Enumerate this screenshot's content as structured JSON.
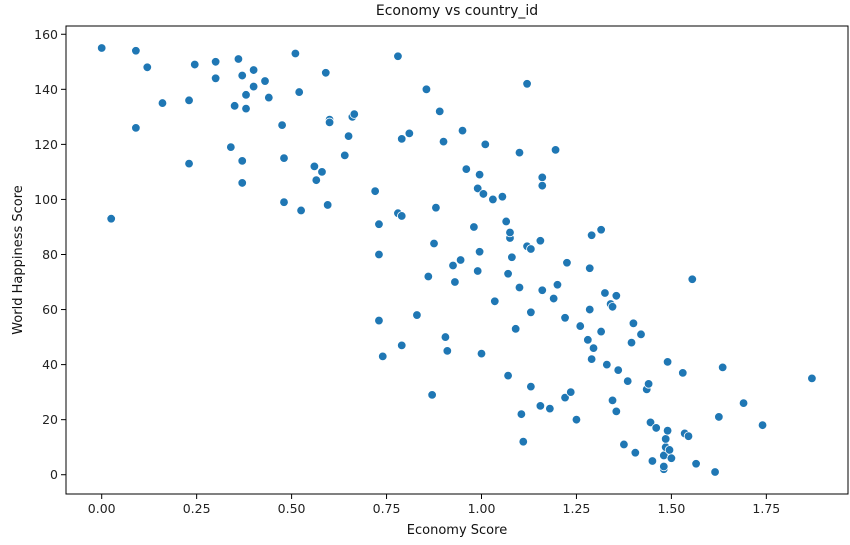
{
  "chart_data": {
    "type": "scatter",
    "title": "Economy vs country_id",
    "xlabel": "Economy Score",
    "ylabel": "World Happiness Score",
    "xlim": [
      -0.094,
      1.965
    ],
    "ylim": [
      -7,
      163
    ],
    "xticks": [
      0.0,
      0.25,
      0.5,
      0.75,
      1.0,
      1.25,
      1.5,
      1.75
    ],
    "xtick_labels": [
      "0.00",
      "0.25",
      "0.50",
      "0.75",
      "1.00",
      "1.25",
      "1.50",
      "1.75"
    ],
    "yticks": [
      0,
      20,
      40,
      60,
      80,
      100,
      120,
      140,
      160
    ],
    "ytick_labels": [
      "0",
      "20",
      "40",
      "60",
      "80",
      "100",
      "120",
      "140",
      "160"
    ],
    "grid": false,
    "legend": "none",
    "marker_color": "#1f77b4",
    "points": [
      {
        "x": 0.0,
        "y": 155
      },
      {
        "x": 0.025,
        "y": 93
      },
      {
        "x": 0.09,
        "y": 154
      },
      {
        "x": 0.09,
        "y": 126
      },
      {
        "x": 0.12,
        "y": 148
      },
      {
        "x": 0.16,
        "y": 135
      },
      {
        "x": 0.23,
        "y": 136
      },
      {
        "x": 0.23,
        "y": 113
      },
      {
        "x": 0.245,
        "y": 149
      },
      {
        "x": 0.3,
        "y": 150
      },
      {
        "x": 0.3,
        "y": 144
      },
      {
        "x": 0.34,
        "y": 119
      },
      {
        "x": 0.35,
        "y": 134
      },
      {
        "x": 0.36,
        "y": 151
      },
      {
        "x": 0.37,
        "y": 145
      },
      {
        "x": 0.37,
        "y": 114
      },
      {
        "x": 0.37,
        "y": 106
      },
      {
        "x": 0.38,
        "y": 138
      },
      {
        "x": 0.38,
        "y": 133
      },
      {
        "x": 0.4,
        "y": 147
      },
      {
        "x": 0.4,
        "y": 141
      },
      {
        "x": 0.43,
        "y": 143
      },
      {
        "x": 0.44,
        "y": 137
      },
      {
        "x": 0.475,
        "y": 127
      },
      {
        "x": 0.48,
        "y": 115
      },
      {
        "x": 0.48,
        "y": 99
      },
      {
        "x": 0.51,
        "y": 153
      },
      {
        "x": 0.52,
        "y": 139
      },
      {
        "x": 0.525,
        "y": 96
      },
      {
        "x": 0.56,
        "y": 112
      },
      {
        "x": 0.565,
        "y": 107
      },
      {
        "x": 0.58,
        "y": 110
      },
      {
        "x": 0.59,
        "y": 146
      },
      {
        "x": 0.595,
        "y": 98
      },
      {
        "x": 0.6,
        "y": 129
      },
      {
        "x": 0.6,
        "y": 128
      },
      {
        "x": 0.64,
        "y": 116
      },
      {
        "x": 0.65,
        "y": 123
      },
      {
        "x": 0.66,
        "y": 130
      },
      {
        "x": 0.665,
        "y": 131
      },
      {
        "x": 0.72,
        "y": 103
      },
      {
        "x": 0.73,
        "y": 91
      },
      {
        "x": 0.73,
        "y": 80
      },
      {
        "x": 0.73,
        "y": 56
      },
      {
        "x": 0.74,
        "y": 43
      },
      {
        "x": 0.78,
        "y": 152
      },
      {
        "x": 0.78,
        "y": 95
      },
      {
        "x": 0.79,
        "y": 94
      },
      {
        "x": 0.79,
        "y": 122
      },
      {
        "x": 0.79,
        "y": 47
      },
      {
        "x": 0.81,
        "y": 124
      },
      {
        "x": 0.83,
        "y": 58
      },
      {
        "x": 0.855,
        "y": 140
      },
      {
        "x": 0.86,
        "y": 72
      },
      {
        "x": 0.87,
        "y": 29
      },
      {
        "x": 0.875,
        "y": 84
      },
      {
        "x": 0.88,
        "y": 97
      },
      {
        "x": 0.89,
        "y": 132
      },
      {
        "x": 0.9,
        "y": 121
      },
      {
        "x": 0.905,
        "y": 50
      },
      {
        "x": 0.91,
        "y": 45
      },
      {
        "x": 0.925,
        "y": 76
      },
      {
        "x": 0.93,
        "y": 70
      },
      {
        "x": 0.945,
        "y": 78
      },
      {
        "x": 0.95,
        "y": 125
      },
      {
        "x": 0.96,
        "y": 111
      },
      {
        "x": 0.98,
        "y": 90
      },
      {
        "x": 0.99,
        "y": 74
      },
      {
        "x": 0.99,
        "y": 104
      },
      {
        "x": 0.995,
        "y": 109
      },
      {
        "x": 0.995,
        "y": 81
      },
      {
        "x": 1.0,
        "y": 44
      },
      {
        "x": 1.005,
        "y": 102
      },
      {
        "x": 1.01,
        "y": 120
      },
      {
        "x": 1.03,
        "y": 100
      },
      {
        "x": 1.035,
        "y": 63
      },
      {
        "x": 1.055,
        "y": 101
      },
      {
        "x": 1.065,
        "y": 92
      },
      {
        "x": 1.07,
        "y": 73
      },
      {
        "x": 1.07,
        "y": 36
      },
      {
        "x": 1.075,
        "y": 86
      },
      {
        "x": 1.075,
        "y": 88
      },
      {
        "x": 1.08,
        "y": 79
      },
      {
        "x": 1.09,
        "y": 53
      },
      {
        "x": 1.1,
        "y": 117
      },
      {
        "x": 1.1,
        "y": 68
      },
      {
        "x": 1.105,
        "y": 22
      },
      {
        "x": 1.11,
        "y": 12
      },
      {
        "x": 1.12,
        "y": 142
      },
      {
        "x": 1.12,
        "y": 83
      },
      {
        "x": 1.13,
        "y": 82
      },
      {
        "x": 1.13,
        "y": 59
      },
      {
        "x": 1.13,
        "y": 32
      },
      {
        "x": 1.155,
        "y": 85
      },
      {
        "x": 1.155,
        "y": 25
      },
      {
        "x": 1.16,
        "y": 108
      },
      {
        "x": 1.16,
        "y": 105
      },
      {
        "x": 1.16,
        "y": 67
      },
      {
        "x": 1.18,
        "y": 24
      },
      {
        "x": 1.19,
        "y": 64
      },
      {
        "x": 1.195,
        "y": 118
      },
      {
        "x": 1.2,
        "y": 69
      },
      {
        "x": 1.22,
        "y": 57
      },
      {
        "x": 1.22,
        "y": 28
      },
      {
        "x": 1.225,
        "y": 77
      },
      {
        "x": 1.235,
        "y": 30
      },
      {
        "x": 1.25,
        "y": 20
      },
      {
        "x": 1.26,
        "y": 54
      },
      {
        "x": 1.28,
        "y": 49
      },
      {
        "x": 1.285,
        "y": 75
      },
      {
        "x": 1.285,
        "y": 60
      },
      {
        "x": 1.29,
        "y": 87
      },
      {
        "x": 1.29,
        "y": 42
      },
      {
        "x": 1.295,
        "y": 46
      },
      {
        "x": 1.315,
        "y": 89
      },
      {
        "x": 1.315,
        "y": 52
      },
      {
        "x": 1.325,
        "y": 66
      },
      {
        "x": 1.33,
        "y": 40
      },
      {
        "x": 1.34,
        "y": 62
      },
      {
        "x": 1.345,
        "y": 61
      },
      {
        "x": 1.345,
        "y": 27
      },
      {
        "x": 1.355,
        "y": 65
      },
      {
        "x": 1.355,
        "y": 23
      },
      {
        "x": 1.36,
        "y": 38
      },
      {
        "x": 1.375,
        "y": 11
      },
      {
        "x": 1.385,
        "y": 34
      },
      {
        "x": 1.395,
        "y": 48
      },
      {
        "x": 1.4,
        "y": 55
      },
      {
        "x": 1.405,
        "y": 8
      },
      {
        "x": 1.42,
        "y": 51
      },
      {
        "x": 1.435,
        "y": 31
      },
      {
        "x": 1.44,
        "y": 33
      },
      {
        "x": 1.445,
        "y": 19
      },
      {
        "x": 1.45,
        "y": 5
      },
      {
        "x": 1.46,
        "y": 17
      },
      {
        "x": 1.48,
        "y": 2
      },
      {
        "x": 1.48,
        "y": 3
      },
      {
        "x": 1.48,
        "y": 7
      },
      {
        "x": 1.485,
        "y": 10
      },
      {
        "x": 1.485,
        "y": 13
      },
      {
        "x": 1.49,
        "y": 16
      },
      {
        "x": 1.49,
        "y": 41
      },
      {
        "x": 1.495,
        "y": 9
      },
      {
        "x": 1.5,
        "y": 6
      },
      {
        "x": 1.53,
        "y": 37
      },
      {
        "x": 1.535,
        "y": 15
      },
      {
        "x": 1.545,
        "y": 14
      },
      {
        "x": 1.555,
        "y": 71
      },
      {
        "x": 1.565,
        "y": 4
      },
      {
        "x": 1.615,
        "y": 1
      },
      {
        "x": 1.625,
        "y": 21
      },
      {
        "x": 1.635,
        "y": 39
      },
      {
        "x": 1.69,
        "y": 26
      },
      {
        "x": 1.74,
        "y": 18
      },
      {
        "x": 1.87,
        "y": 35
      }
    ]
  }
}
